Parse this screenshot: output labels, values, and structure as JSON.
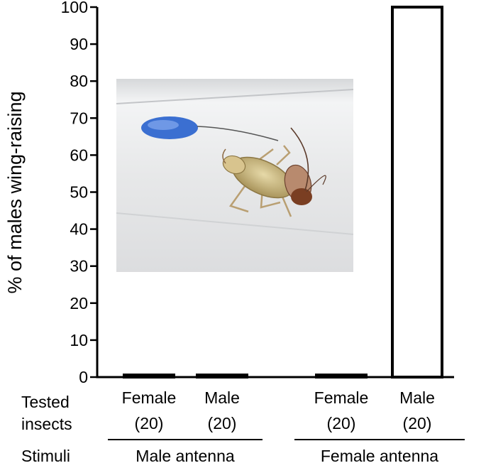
{
  "chart_data": {
    "type": "bar",
    "ylabel": "% of males wing-raising",
    "ylim": [
      0,
      100
    ],
    "yticks": [
      0,
      10,
      20,
      30,
      40,
      50,
      60,
      70,
      80,
      90,
      100
    ],
    "bar_fill": "#ffffff",
    "bar_stroke": "#000000",
    "row_labels": {
      "tested": [
        "Tested",
        "insects"
      ],
      "stimuli": "Stimuli"
    },
    "groups": [
      {
        "stimulus": "Male antenna",
        "bars": [
          {
            "insect": "Female",
            "n": "(20)",
            "value": 0
          },
          {
            "insect": "Male",
            "n": "(20)",
            "value": 0
          }
        ]
      },
      {
        "stimulus": "Female antenna",
        "bars": [
          {
            "insect": "Female",
            "n": "(20)",
            "value": 0
          },
          {
            "insect": "Male",
            "n": "(20)",
            "value": 100
          }
        ]
      }
    ],
    "inset_photo": {
      "subject": "cockroach with antenna stimulus in tube",
      "colors": {
        "background": "#e6e7e8",
        "marker": "#3b6fd1",
        "insect_body": "#c9b98a",
        "insect_head": "#8a4a2a"
      }
    }
  }
}
